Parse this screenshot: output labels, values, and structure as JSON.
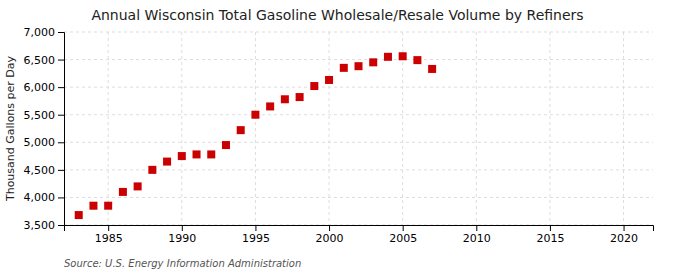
{
  "chart_data": {
    "type": "scatter",
    "title": "Annual Wisconsin Total Gasoline Wholesale/Resale Volume by Refiners",
    "ylabel": "Thousand Gallons per Day",
    "source": "Source: U.S. Energy Information Administration",
    "x": [
      1983,
      1984,
      1985,
      1986,
      1987,
      1988,
      1989,
      1990,
      1991,
      1992,
      1993,
      1994,
      1995,
      1996,
      1997,
      1998,
      1999,
      2000,
      2001,
      2002,
      2003,
      2004,
      2005,
      2006,
      2007
    ],
    "values": [
      3680,
      3850,
      3850,
      4100,
      4200,
      4500,
      4650,
      4750,
      4780,
      4780,
      4950,
      5220,
      5500,
      5650,
      5780,
      5820,
      6020,
      6130,
      6350,
      6380,
      6450,
      6550,
      6560,
      6490,
      6330
    ],
    "color": "#cc0000",
    "marker": "square",
    "xlim": [
      1982,
      2022
    ],
    "xticks": [
      1985,
      1990,
      1995,
      2000,
      2005,
      2010,
      2015,
      2020
    ],
    "ylim": [
      3500,
      7000
    ],
    "yticks": [
      {
        "value": 3500,
        "label": "3,500"
      },
      {
        "value": 4000,
        "label": "4,000"
      },
      {
        "value": 4500,
        "label": "4,500"
      },
      {
        "value": 5000,
        "label": "5,000"
      },
      {
        "value": 5500,
        "label": "5,500"
      },
      {
        "value": 6000,
        "label": "6,000"
      },
      {
        "value": 6500,
        "label": "6,500"
      },
      {
        "value": 7000,
        "label": "7,000"
      }
    ],
    "grid": true
  }
}
